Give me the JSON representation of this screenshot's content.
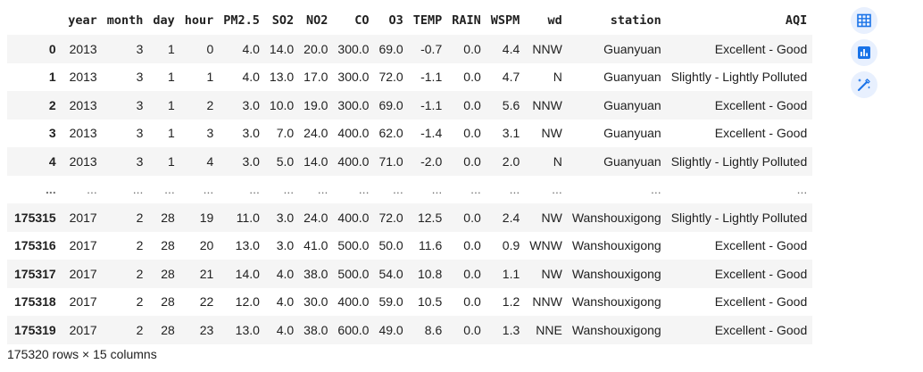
{
  "table": {
    "columns": [
      "",
      "year",
      "month",
      "day",
      "hour",
      "PM2.5",
      "SO2",
      "NO2",
      "CO",
      "O3",
      "TEMP",
      "RAIN",
      "WSPM",
      "wd",
      "station",
      "AQI"
    ],
    "rows": [
      {
        "index": "0",
        "cells": [
          "2013",
          "3",
          "1",
          "0",
          "4.0",
          "14.0",
          "20.0",
          "300.0",
          "69.0",
          "-0.7",
          "0.0",
          "4.4",
          "NNW",
          "Guanyuan",
          "Excellent - Good"
        ]
      },
      {
        "index": "1",
        "cells": [
          "2013",
          "3",
          "1",
          "1",
          "4.0",
          "13.0",
          "17.0",
          "300.0",
          "72.0",
          "-1.1",
          "0.0",
          "4.7",
          "N",
          "Guanyuan",
          "Slightly - Lightly Polluted"
        ]
      },
      {
        "index": "2",
        "cells": [
          "2013",
          "3",
          "1",
          "2",
          "3.0",
          "10.0",
          "19.0",
          "300.0",
          "69.0",
          "-1.1",
          "0.0",
          "5.6",
          "NNW",
          "Guanyuan",
          "Excellent - Good"
        ]
      },
      {
        "index": "3",
        "cells": [
          "2013",
          "3",
          "1",
          "3",
          "3.0",
          "7.0",
          "24.0",
          "400.0",
          "62.0",
          "-1.4",
          "0.0",
          "3.1",
          "NW",
          "Guanyuan",
          "Excellent - Good"
        ]
      },
      {
        "index": "4",
        "cells": [
          "2013",
          "3",
          "1",
          "4",
          "3.0",
          "5.0",
          "14.0",
          "400.0",
          "71.0",
          "-2.0",
          "0.0",
          "2.0",
          "N",
          "Guanyuan",
          "Slightly - Lightly Polluted"
        ]
      },
      {
        "index": "...",
        "cells": [
          "...",
          "...",
          "...",
          "...",
          "...",
          "...",
          "...",
          "...",
          "...",
          "...",
          "...",
          "...",
          "...",
          "...",
          "..."
        ],
        "ellipsis": true
      },
      {
        "index": "175315",
        "cells": [
          "2017",
          "2",
          "28",
          "19",
          "11.0",
          "3.0",
          "24.0",
          "400.0",
          "72.0",
          "12.5",
          "0.0",
          "2.4",
          "NW",
          "Wanshouxigong",
          "Slightly - Lightly Polluted"
        ]
      },
      {
        "index": "175316",
        "cells": [
          "2017",
          "2",
          "28",
          "20",
          "13.0",
          "3.0",
          "41.0",
          "500.0",
          "50.0",
          "11.6",
          "0.0",
          "0.9",
          "WNW",
          "Wanshouxigong",
          "Excellent - Good"
        ]
      },
      {
        "index": "175317",
        "cells": [
          "2017",
          "2",
          "28",
          "21",
          "14.0",
          "4.0",
          "38.0",
          "500.0",
          "54.0",
          "10.8",
          "0.0",
          "1.1",
          "NW",
          "Wanshouxigong",
          "Excellent - Good"
        ]
      },
      {
        "index": "175318",
        "cells": [
          "2017",
          "2",
          "28",
          "22",
          "12.0",
          "4.0",
          "30.0",
          "400.0",
          "59.0",
          "10.5",
          "0.0",
          "1.2",
          "NNW",
          "Wanshouxigong",
          "Excellent - Good"
        ]
      },
      {
        "index": "175319",
        "cells": [
          "2017",
          "2",
          "28",
          "23",
          "13.0",
          "4.0",
          "38.0",
          "600.0",
          "49.0",
          "8.6",
          "0.0",
          "1.3",
          "NNE",
          "Wanshouxigong",
          "Excellent - Good"
        ]
      }
    ]
  },
  "footer": {
    "shape_text": "175320 rows × 15 columns"
  },
  "toolbar": {
    "buttons": [
      {
        "icon": "table-icon"
      },
      {
        "icon": "chart-icon"
      },
      {
        "icon": "magic-wand-icon"
      }
    ],
    "accent_color": "#1a73e8",
    "button_bg": "#e8f0fe"
  }
}
